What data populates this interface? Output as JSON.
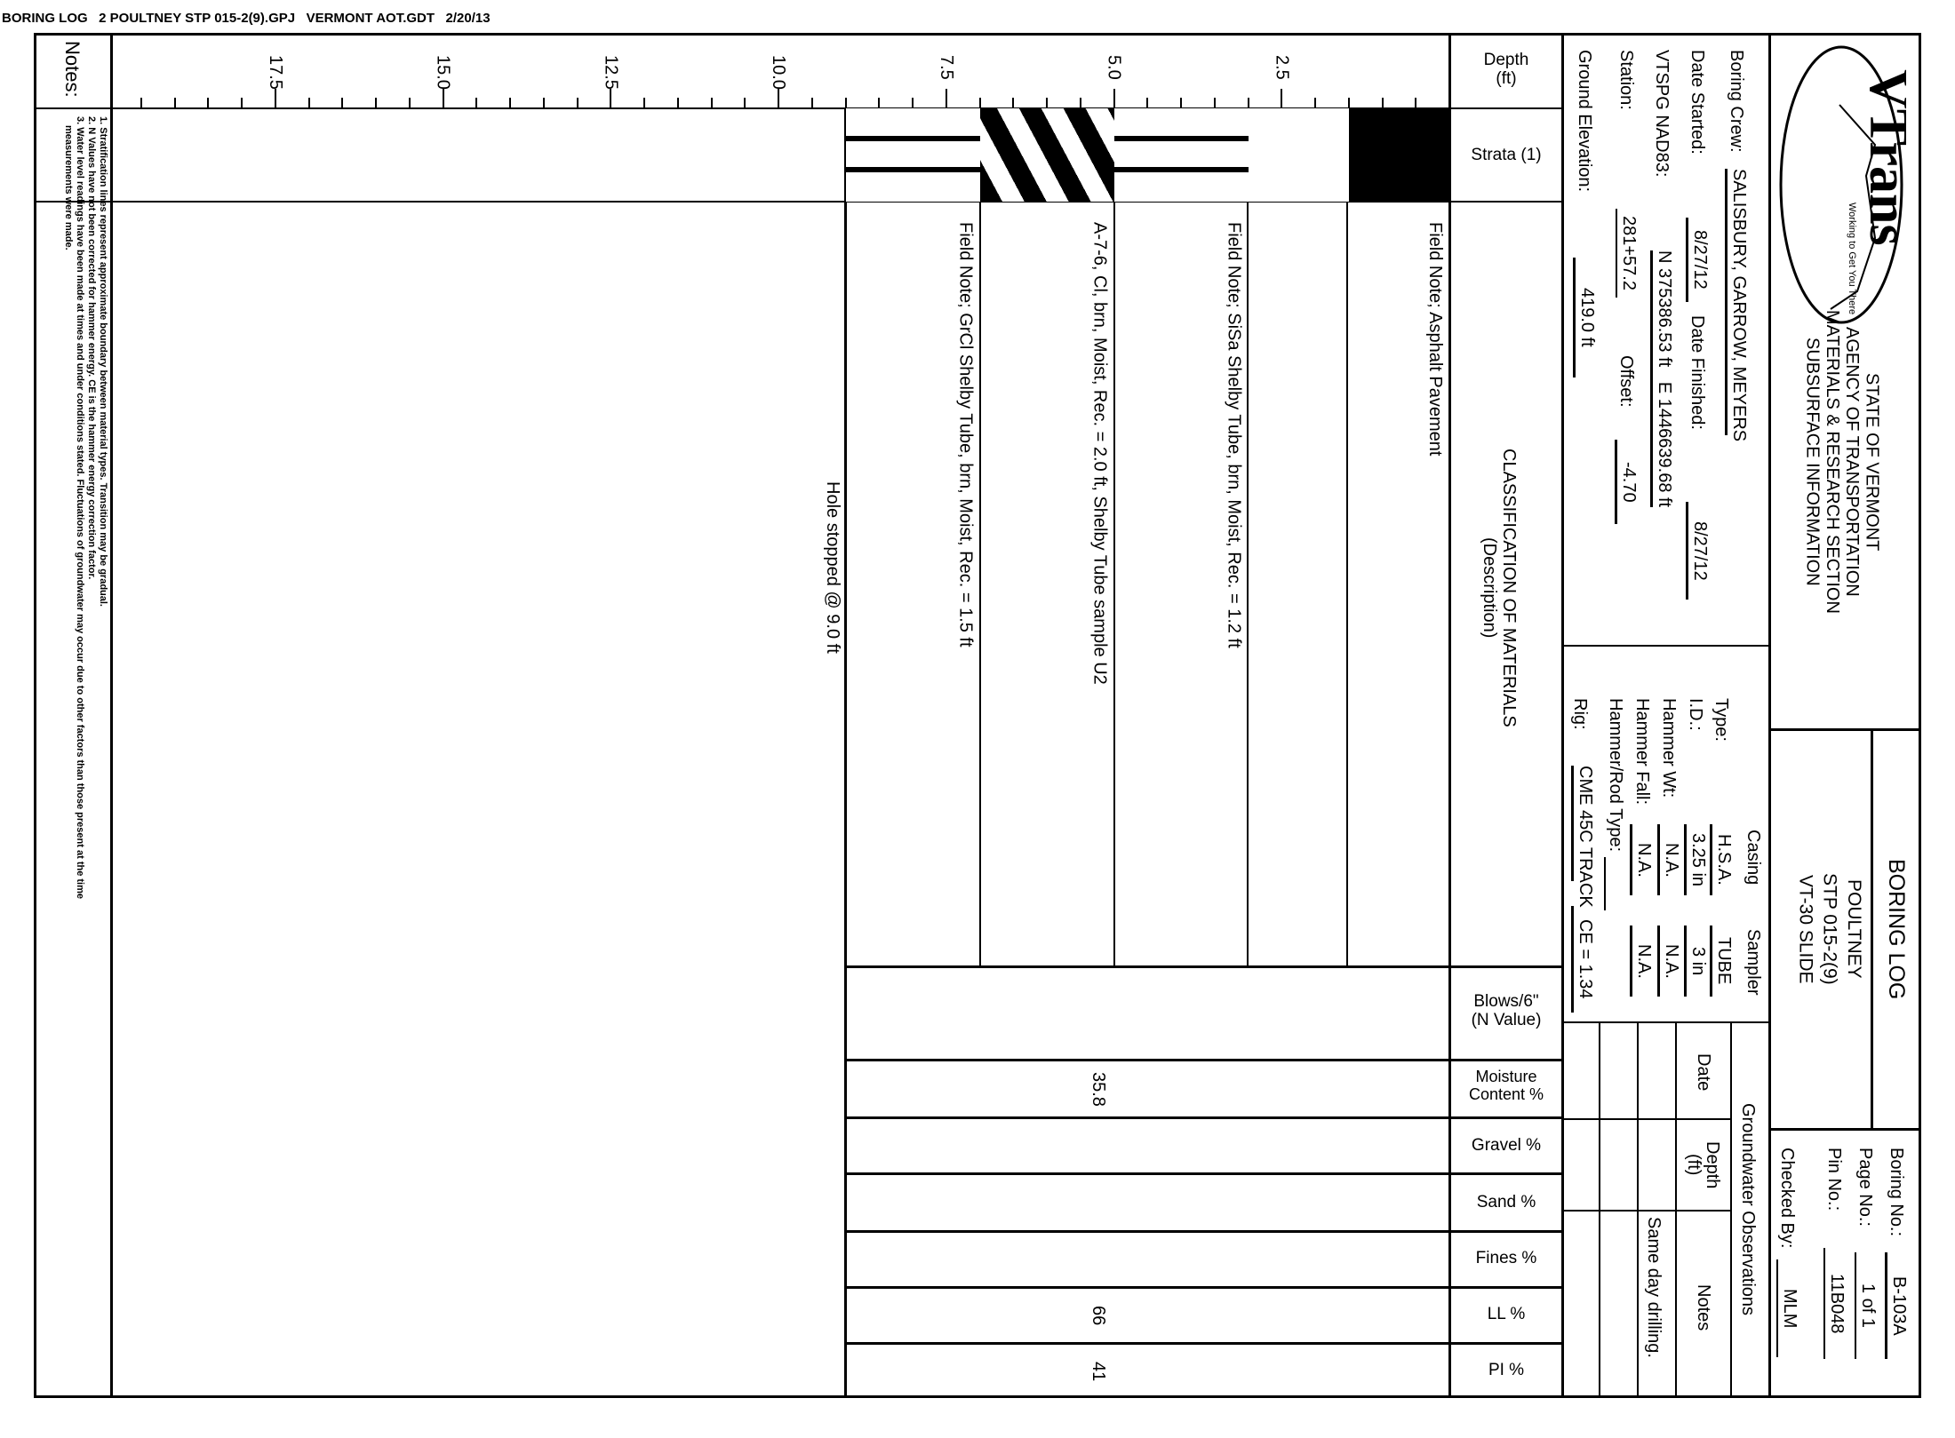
{
  "header_line": "BORING LOG   2 POULTNEY STP 015-2(9).GPJ   VERMONT AOT.GDT   2/20/13",
  "notes": {
    "title": "Notes:",
    "lines": [
      "1. Stratification lines represent approximate boundary between material types. Transition may be gradual.",
      "2. N Values have not been corrected for hammer energy. CE is the hammer energy correction factor.",
      "3. Water level readings have been made at times and under conditions stated. Fluctuations of groundwater may occur due to other factors than those present at the time",
      "measurements were made."
    ]
  },
  "depth_axis": {
    "label_line1": "Depth",
    "label_line2": "(ft)",
    "range_ft": [
      0,
      20
    ],
    "major_ticks": [
      "2.5",
      "5.0",
      "7.5",
      "10.0",
      "12.5",
      "15.0",
      "17.5"
    ]
  },
  "row_labels": {
    "strata": "Strata (1)",
    "classification_line1": "CLASSIFICATION OF MATERIALS",
    "classification_line2": "(Description)",
    "blows_line1": "Blows/6\"",
    "blows_line2": "(N Value)",
    "moisture_line1": "Moisture",
    "moisture_line2": "Content %",
    "gravel": "Gravel %",
    "sand": "Sand %",
    "fines": "Fines %",
    "ll": "LL %",
    "pi": "PI %"
  },
  "strata": [
    {
      "top_ft": 0.0,
      "bottom_ft": 1.5,
      "pattern": "solid-black"
    },
    {
      "top_ft": 1.5,
      "bottom_ft": 3.0,
      "pattern": "blank"
    },
    {
      "top_ft": 3.0,
      "bottom_ft": 5.0,
      "pattern": "horizontal-lines"
    },
    {
      "top_ft": 5.0,
      "bottom_ft": 7.0,
      "pattern": "diagonal-hatch"
    },
    {
      "top_ft": 7.0,
      "bottom_ft": 9.0,
      "pattern": "horizontal-lines"
    }
  ],
  "descriptions": [
    {
      "top_ft": 0.0,
      "text": "Field Note; Asphalt Pavement"
    },
    {
      "top_ft": 3.0,
      "text": "Field Note; SiSa Shelby Tube, brn, Moist, Rec. = 1.2 ft"
    },
    {
      "top_ft": 5.0,
      "text": "A-7-6, Cl, brn, Moist, Rec. = 2.0 ft, Shelby Tube sample U2"
    },
    {
      "top_ft": 7.0,
      "text": "Field Note; GrCl Shelby Tube, brn, Moist, Rec. = 1.5 ft"
    }
  ],
  "hole_stopped": "Hole stopped @ 9.0 ft",
  "lab": {
    "moisture": "35.8",
    "ll": "66",
    "pi": "41"
  },
  "info": {
    "boring_crew_label": "Boring Crew:",
    "boring_crew": "SALISBURY, GARROW, MEYERS",
    "date_started_label": "Date Started:",
    "date_started": "8/27/12",
    "date_finished_label": "Date Finished:",
    "date_finished": "8/27/12",
    "vtspg_label": "VTSPG NAD83:",
    "vtspg": "N 375386.53 ft   E 1446639.68 ft",
    "station_label": "Station:",
    "station": "281+57.2",
    "offset_label": "Offset:",
    "offset": "-4.70",
    "ground_elev_label": "Ground Elevation:",
    "ground_elev": "419.0 ft",
    "casing_header": "Casing",
    "sampler_header": "Sampler",
    "type_label": "Type:",
    "type_casing": "H.S.A.",
    "type_sampler": "TUBE",
    "id_label": "I.D.:",
    "id_casing": "3.25 in",
    "id_sampler": "3 in",
    "hammer_wt_label": "Hammer Wt:",
    "hammer_wt_casing": "N.A.",
    "hammer_wt_sampler": "N.A.",
    "hammer_fall_label": "Hammer Fall:",
    "hammer_fall_casing": "N.A.",
    "hammer_fall_sampler": "N.A.",
    "hammer_rod_label": "Hammer/Rod Type:",
    "rig_label": "Rig:",
    "rig": "CME 45C TRACK",
    "ce": "CE = 1.34",
    "gw_header": "Groundwater Observations",
    "gw_date": "Date",
    "gw_depth_line1": "Depth",
    "gw_depth_line2": "(ft)",
    "gw_notes": "Notes",
    "gw_note_1": "Same day drilling."
  },
  "title": {
    "logo_text": "VTrans",
    "logo_tagline": "Working to Get You There",
    "state": [
      "STATE OF VERMONT",
      "AGENCY OF TRANSPORTATION",
      "MATERIALS & RESEARCH SECTION",
      "SUBSURFACE INFORMATION"
    ],
    "doc_title": "BORING LOG",
    "project": [
      "POULTNEY",
      "STP 015-2(9)",
      "VT-30 SLIDE"
    ],
    "boring_no_label": "Boring No.:",
    "boring_no": "B-103A",
    "page_no_label": "Page No.:",
    "page_no": "1 of 1",
    "pin_no_label": "Pin No.:",
    "pin_no": "11B048",
    "checked_by_label": "Checked By:",
    "checked_by": "MLM"
  }
}
